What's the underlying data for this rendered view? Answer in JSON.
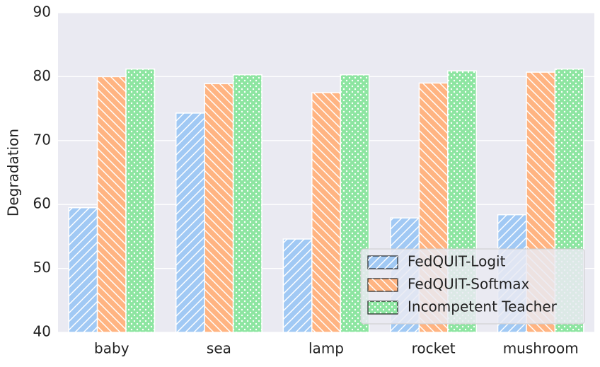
{
  "chart_data": {
    "type": "bar",
    "ylabel": "Degradation",
    "categories": [
      "baby",
      "sea",
      "lamp",
      "rocket",
      "mushroom"
    ],
    "series": [
      {
        "name": "FedQUIT-Logit",
        "color": "#a1c9f4",
        "hatch": "/",
        "values": [
          59.5,
          74.3,
          54.6,
          57.9,
          58.4
        ]
      },
      {
        "name": "FedQUIT-Softmax",
        "color": "#ffb482",
        "hatch": "\\",
        "values": [
          80.0,
          78.9,
          77.5,
          79.0,
          80.7
        ]
      },
      {
        "name": "Incompetent Teacher",
        "color": "#8de5a1",
        "hatch": ".",
        "values": [
          81.2,
          80.3,
          80.3,
          80.9,
          81.2
        ]
      }
    ],
    "ylim": [
      40,
      90
    ],
    "yticks": [
      40,
      50,
      60,
      70,
      80,
      90
    ],
    "grid": true,
    "legend": "lower right"
  }
}
